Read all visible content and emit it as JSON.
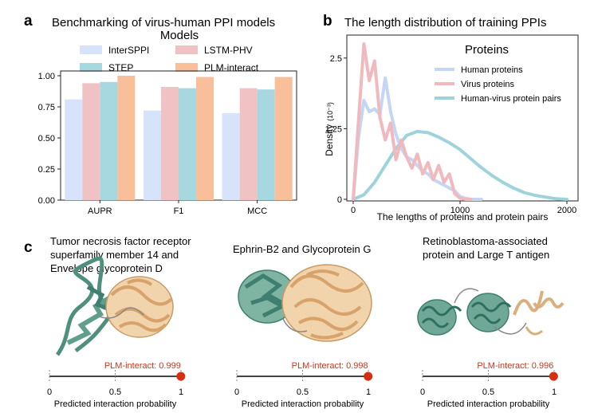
{
  "panel_labels": {
    "a": "a",
    "b": "b",
    "c": "c"
  },
  "chart_data": [
    {
      "type": "bar",
      "title": "Benchmarking of virus-human PPI models",
      "legend_title": "Models",
      "legend_position": "top",
      "categories": [
        "AUPR",
        "F1",
        "MCC"
      ],
      "ylim": [
        0,
        1.0
      ],
      "yticks": [
        "0.00",
        "0.25",
        "0.50",
        "0.75",
        "1.00"
      ],
      "grid": false,
      "series": [
        {
          "name": "InterSPPI",
          "color": "#d6e3fa",
          "values": [
            0.81,
            0.72,
            0.7
          ]
        },
        {
          "name": "LSTM-PHV",
          "color": "#f0c2c4",
          "values": [
            0.94,
            0.91,
            0.9
          ]
        },
        {
          "name": "STEP",
          "color": "#a8d8df",
          "values": [
            0.95,
            0.9,
            0.89
          ]
        },
        {
          "name": "PLM-interact",
          "color": "#f8bf9a",
          "values": [
            1.0,
            0.99,
            0.99
          ]
        }
      ]
    },
    {
      "type": "line",
      "title": "The length distribution of training PPIs",
      "legend_title": "Proteins",
      "legend_position": "top-right",
      "xlabel": "The lengths of proteins and protein pairs",
      "ylabel": "Density",
      "ylabel_unit": "(10⁻³)",
      "xlim": [
        0,
        2000
      ],
      "ylim": [
        0,
        2.85
      ],
      "xticks": [
        "0",
        "1000",
        "2000"
      ],
      "yticks": [
        "0",
        "1.25",
        "2.5"
      ],
      "series": [
        {
          "name": "Human proteins",
          "color": "#c5d6f5",
          "x": [
            0,
            50,
            100,
            150,
            200,
            250,
            300,
            350,
            400,
            450,
            500,
            550,
            600,
            650,
            700,
            750,
            800,
            850,
            900,
            950,
            1000,
            1050,
            1100,
            1200
          ],
          "y": [
            0,
            1.1,
            1.75,
            1.55,
            1.6,
            1.5,
            2.15,
            1.55,
            1.15,
            0.9,
            0.75,
            0.7,
            0.6,
            0.5,
            0.45,
            0.35,
            0.3,
            0.25,
            0.2,
            0.15,
            0.05,
            0.02,
            0,
            0
          ]
        },
        {
          "name": "Virus proteins",
          "color": "#f0b9bd",
          "x": [
            0,
            50,
            100,
            150,
            200,
            250,
            300,
            350,
            400,
            450,
            500,
            550,
            600,
            650,
            700,
            750,
            800,
            850,
            900,
            950,
            1000,
            1050,
            1100
          ],
          "y": [
            0,
            1.4,
            2.75,
            2.1,
            2.45,
            1.45,
            1.05,
            1.35,
            0.7,
            1.05,
            0.75,
            0.55,
            0.8,
            0.45,
            0.65,
            0.35,
            0.6,
            0.3,
            0.45,
            0.1,
            0.02,
            0,
            0
          ]
        },
        {
          "name": "Human-virus protein pairs",
          "color": "#9fd3dc",
          "x": [
            0,
            100,
            200,
            300,
            400,
            500,
            600,
            700,
            800,
            900,
            1000,
            1100,
            1200,
            1300,
            1400,
            1500,
            1600,
            1700,
            1800,
            1900,
            2000
          ],
          "y": [
            0,
            0.08,
            0.3,
            0.6,
            0.9,
            1.13,
            1.2,
            1.18,
            1.1,
            1.0,
            0.88,
            0.72,
            0.56,
            0.42,
            0.3,
            0.2,
            0.12,
            0.07,
            0.04,
            0.01,
            0
          ]
        }
      ]
    }
  ],
  "panel_c": {
    "xlabel": "Predicted interaction probability",
    "ticks": [
      "0",
      "0.5",
      "1"
    ],
    "items": [
      {
        "caption_lines": [
          "Tumor necrosis factor receptor",
          "superfamily member 14 and",
          "Envelope glycoprotein D"
        ],
        "score_label": "PLM-interact: 0.999",
        "probability": 0.999
      },
      {
        "caption_lines": [
          "Ephrin-B2 and Glycoprotein G"
        ],
        "score_label": "PLM-interact: 0.998",
        "probability": 0.998
      },
      {
        "caption_lines": [
          "Retinoblastoma-associated",
          "protein  and Large T antigen"
        ],
        "score_label": "PLM-interact: 0.996",
        "probability": 0.996
      }
    ],
    "colors": {
      "teal": "#4f8f7e",
      "tan": "#e3b884",
      "marker": "#d62e10"
    }
  }
}
